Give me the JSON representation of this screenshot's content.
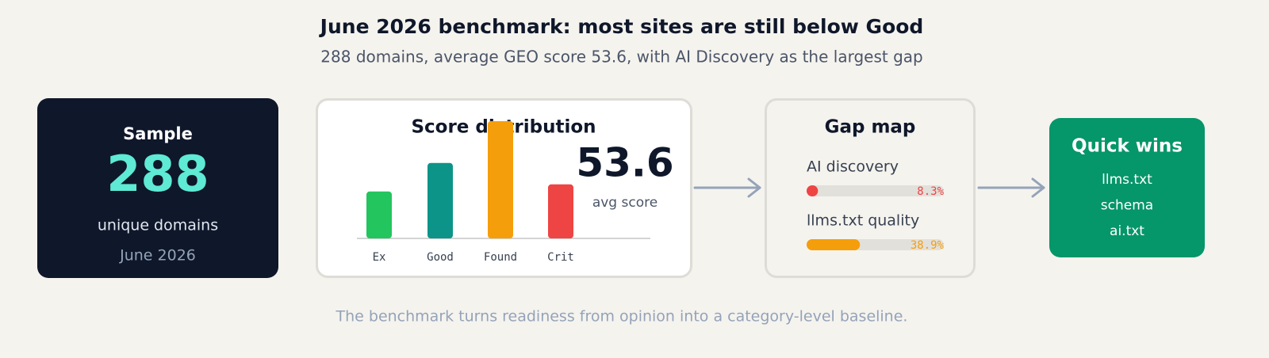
{
  "header": {
    "title": "June 2026 benchmark: most sites are still below Good",
    "subtitle": "288 domains, average GEO score 53.6, with AI Discovery as the largest gap"
  },
  "sample": {
    "title": "Sample",
    "count": "288",
    "label": "unique domains",
    "date": "June 2026"
  },
  "distribution": {
    "title": "Score distribution",
    "categories": [
      "Ex",
      "Good",
      "Found",
      "Crit"
    ],
    "values": [
      46,
      74,
      115,
      53
    ],
    "colors": [
      "#22c55e",
      "#0d9488",
      "#f59e0b",
      "#ef4444"
    ],
    "average": "53.6",
    "average_label": "avg score"
  },
  "gap_map": {
    "title": "Gap map",
    "items": [
      {
        "label": "AI discovery",
        "value": 8.3,
        "value_label": "8.3%",
        "color": "#ef4444"
      },
      {
        "label": "llms.txt quality",
        "value": 38.9,
        "value_label": "38.9%",
        "color": "#f59e0b"
      }
    ]
  },
  "quick_wins": {
    "title": "Quick wins",
    "items": [
      "llms.txt",
      "schema",
      "ai.txt"
    ]
  },
  "footer": "The benchmark turns readiness from opinion into a category-level baseline."
}
